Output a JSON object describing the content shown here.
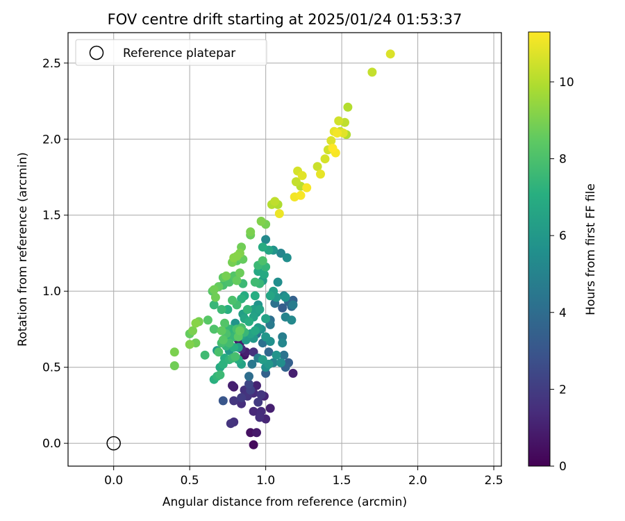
{
  "chart_data": {
    "type": "scatter",
    "title": "FOV centre drift starting at 2025/01/24 01:53:37",
    "xlabel": "Angular distance from reference (arcmin)",
    "ylabel": "Rotation from reference (arcmin)",
    "xlim": [
      -0.3,
      2.55
    ],
    "ylim": [
      -0.15,
      2.7
    ],
    "xticks": [
      0.0,
      0.5,
      1.0,
      1.5,
      2.0,
      2.5
    ],
    "xtick_labels": [
      "0.0",
      "0.5",
      "1.0",
      "1.5",
      "2.0",
      "2.5"
    ],
    "yticks": [
      0.0,
      0.5,
      1.0,
      1.5,
      2.0,
      2.5
    ],
    "ytick_labels": [
      "0.0",
      "0.5",
      "1.0",
      "1.5",
      "2.0",
      "2.5"
    ],
    "grid": true,
    "legend": {
      "position": "upper-left",
      "label": "Reference platepar"
    },
    "reference_point": {
      "x": 0.0,
      "y": 0.0
    },
    "colorbar": {
      "label": "Hours from first FF file",
      "colormap": "viridis",
      "range": [
        0,
        11.3
      ],
      "ticks": [
        0,
        2,
        4,
        6,
        8,
        10
      ],
      "tick_labels": [
        "0",
        "2",
        "4",
        "6",
        "8",
        "10"
      ]
    },
    "points": [
      [
        0.92,
        -0.01,
        0.3
      ],
      [
        0.9,
        0.07,
        0.5
      ],
      [
        0.94,
        0.07,
        0.8
      ],
      [
        0.79,
        0.14,
        1.6
      ],
      [
        0.77,
        0.13,
        1.7
      ],
      [
        0.96,
        0.17,
        1.5
      ],
      [
        1.0,
        0.16,
        1.2
      ],
      [
        0.92,
        0.21,
        1.3
      ],
      [
        0.97,
        0.21,
        1.4
      ],
      [
        1.03,
        0.23,
        1.0
      ],
      [
        0.79,
        0.28,
        1.8
      ],
      [
        0.84,
        0.26,
        1.5
      ],
      [
        0.88,
        0.31,
        1.7
      ],
      [
        0.95,
        0.27,
        1.9
      ],
      [
        0.99,
        0.31,
        1.2
      ],
      [
        0.84,
        0.3,
        2.0
      ],
      [
        0.92,
        0.33,
        1.4
      ],
      [
        0.94,
        0.38,
        1.1
      ],
      [
        0.78,
        0.38,
        1.0
      ],
      [
        0.79,
        0.37,
        0.9
      ],
      [
        0.86,
        0.35,
        1.6
      ],
      [
        0.97,
        0.32,
        1.8
      ],
      [
        0.9,
        0.35,
        2.2
      ],
      [
        0.72,
        0.28,
        3.0
      ],
      [
        0.89,
        0.39,
        2.4
      ],
      [
        0.89,
        0.44,
        4.0
      ],
      [
        0.91,
        0.52,
        4.5
      ],
      [
        1.0,
        0.46,
        3.5
      ],
      [
        1.18,
        0.46,
        1.0
      ],
      [
        1.13,
        0.5,
        3.6
      ],
      [
        1.05,
        0.53,
        5.0
      ],
      [
        1.1,
        0.53,
        5.5
      ],
      [
        1.0,
        0.5,
        5.6
      ],
      [
        0.98,
        0.55,
        6.2
      ],
      [
        1.02,
        0.52,
        6.0
      ],
      [
        0.95,
        0.56,
        4.8
      ],
      [
        0.86,
        0.58,
        0.6
      ],
      [
        0.87,
        0.6,
        1.0
      ],
      [
        0.84,
        0.62,
        1.4
      ],
      [
        0.83,
        0.66,
        0.9
      ],
      [
        0.82,
        0.68,
        0.5
      ],
      [
        0.92,
        0.6,
        1.6
      ],
      [
        1.02,
        0.6,
        3.8
      ],
      [
        1.07,
        0.58,
        5.8
      ],
      [
        1.12,
        0.58,
        4.3
      ],
      [
        1.15,
        0.53,
        3.4
      ],
      [
        1.11,
        0.66,
        5.2
      ],
      [
        1.11,
        0.7,
        4.8
      ],
      [
        1.03,
        0.67,
        5.6
      ],
      [
        0.98,
        0.66,
        4.2
      ],
      [
        1.0,
        0.7,
        5.9
      ],
      [
        0.94,
        0.72,
        4.4
      ],
      [
        0.97,
        0.75,
        5.7
      ],
      [
        1.03,
        0.78,
        4.6
      ],
      [
        1.03,
        0.81,
        4.1
      ],
      [
        1.0,
        0.82,
        6.5
      ],
      [
        1.13,
        0.83,
        5.0
      ],
      [
        1.17,
        0.81,
        5.3
      ],
      [
        1.11,
        0.89,
        3.3
      ],
      [
        1.06,
        0.92,
        4.2
      ],
      [
        1.15,
        0.93,
        3.7
      ],
      [
        1.17,
        0.9,
        3.9
      ],
      [
        1.13,
        0.96,
        5.7
      ],
      [
        1.07,
        0.96,
        6.0
      ],
      [
        1.03,
        0.97,
        6.6
      ],
      [
        1.05,
        1.0,
        6.3
      ],
      [
        1.12,
        0.97,
        5.1
      ],
      [
        1.18,
        0.94,
        3.5
      ],
      [
        1.18,
        0.91,
        4.7
      ],
      [
        1.08,
        1.06,
        5.5
      ],
      [
        0.99,
        1.11,
        6.8
      ],
      [
        1.0,
        1.16,
        7.4
      ],
      [
        0.98,
        1.2,
        8.0
      ],
      [
        1.02,
        1.27,
        6.6
      ],
      [
        1.05,
        1.27,
        5.8
      ],
      [
        0.98,
        1.29,
        6.9
      ],
      [
        1.0,
        1.34,
        5.3
      ],
      [
        1.1,
        1.25,
        5.1
      ],
      [
        1.14,
        1.22,
        5.5
      ],
      [
        0.95,
        1.17,
        7.6
      ],
      [
        0.95,
        1.13,
        6.7
      ],
      [
        0.96,
        1.05,
        7.5
      ],
      [
        0.98,
        1.07,
        6.3
      ],
      [
        0.93,
        1.06,
        7.7
      ],
      [
        0.85,
        1.05,
        7.6
      ],
      [
        0.93,
        0.97,
        7.0
      ],
      [
        0.86,
        0.97,
        6.9
      ],
      [
        0.84,
        0.95,
        7.2
      ],
      [
        0.81,
        0.91,
        7.8
      ],
      [
        0.78,
        0.94,
        8.0
      ],
      [
        0.75,
        0.88,
        7.1
      ],
      [
        0.71,
        0.88,
        7.6
      ],
      [
        0.66,
        0.91,
        7.5
      ],
      [
        0.67,
        0.96,
        8.8
      ],
      [
        0.65,
        1.0,
        8.3
      ],
      [
        0.66,
        1.01,
        8.8
      ],
      [
        0.69,
        1.03,
        8.6
      ],
      [
        0.72,
        1.09,
        8.5
      ],
      [
        0.74,
        1.1,
        8.9
      ],
      [
        0.79,
        1.1,
        8.2
      ],
      [
        0.81,
        1.07,
        8.6
      ],
      [
        0.76,
        1.06,
        8.0
      ],
      [
        0.72,
        1.04,
        7.9
      ],
      [
        0.78,
        1.19,
        8.9
      ],
      [
        0.81,
        1.23,
        9.2
      ],
      [
        0.83,
        1.25,
        9.1
      ],
      [
        0.84,
        1.29,
        8.8
      ],
      [
        0.81,
        1.2,
        8.4
      ],
      [
        0.83,
        1.12,
        8.7
      ],
      [
        0.85,
        1.21,
        8.6
      ],
      [
        0.79,
        1.22,
        9.2
      ],
      [
        0.9,
        1.39,
        9.0
      ],
      [
        0.9,
        1.37,
        8.7
      ],
      [
        0.97,
        1.46,
        9.1
      ],
      [
        1.0,
        1.44,
        8.9
      ],
      [
        1.04,
        1.57,
        10.0
      ],
      [
        1.06,
        1.59,
        10.2
      ],
      [
        1.08,
        1.57,
        9.9
      ],
      [
        1.09,
        1.51,
        11.0
      ],
      [
        1.19,
        1.62,
        11.1
      ],
      [
        1.23,
        1.63,
        11.2
      ],
      [
        1.2,
        1.72,
        10.3
      ],
      [
        1.21,
        1.79,
        10.6
      ],
      [
        1.24,
        1.76,
        10.8
      ],
      [
        1.23,
        1.69,
        10.1
      ],
      [
        1.27,
        1.68,
        11.2
      ],
      [
        1.34,
        1.82,
        10.4
      ],
      [
        1.36,
        1.77,
        10.9
      ],
      [
        1.39,
        1.87,
        10.6
      ],
      [
        1.41,
        1.93,
        10.5
      ],
      [
        1.44,
        1.94,
        11.3
      ],
      [
        1.46,
        1.91,
        11.2
      ],
      [
        1.43,
        1.99,
        10.7
      ],
      [
        1.45,
        2.05,
        10.9
      ],
      [
        1.47,
        2.04,
        11.1
      ],
      [
        1.49,
        2.05,
        10.4
      ],
      [
        1.48,
        2.12,
        10.5
      ],
      [
        1.52,
        2.11,
        10.2
      ],
      [
        1.51,
        2.04,
        10.8
      ],
      [
        1.53,
        2.03,
        10.0
      ],
      [
        1.54,
        2.21,
        10.0
      ],
      [
        1.7,
        2.44,
        10.3
      ],
      [
        1.82,
        2.56,
        10.7
      ],
      [
        0.5,
        0.72,
        8.6
      ],
      [
        0.52,
        0.74,
        9.0
      ],
      [
        0.54,
        0.79,
        9.2
      ],
      [
        0.56,
        0.8,
        8.9
      ],
      [
        0.5,
        0.65,
        9.1
      ],
      [
        0.54,
        0.66,
        8.8
      ],
      [
        0.4,
        0.6,
        9.0
      ],
      [
        0.4,
        0.51,
        8.8
      ],
      [
        0.6,
        0.58,
        7.7
      ],
      [
        0.62,
        0.81,
        8.3
      ],
      [
        0.66,
        0.75,
        8.1
      ],
      [
        0.68,
        0.61,
        6.1
      ],
      [
        0.66,
        0.42,
        7.1
      ],
      [
        0.68,
        0.44,
        7.4
      ],
      [
        0.7,
        0.45,
        7.6
      ],
      [
        0.72,
        0.52,
        7.2
      ],
      [
        0.73,
        0.56,
        7.0
      ],
      [
        0.7,
        0.5,
        6.8
      ],
      [
        0.76,
        0.55,
        7.3
      ],
      [
        0.78,
        0.56,
        7.6
      ],
      [
        0.8,
        0.57,
        7.9
      ],
      [
        0.82,
        0.55,
        6.9
      ],
      [
        0.84,
        0.52,
        6.5
      ],
      [
        0.69,
        0.6,
        8.0
      ],
      [
        0.71,
        0.66,
        7.8
      ],
      [
        0.72,
        0.68,
        8.3
      ],
      [
        0.74,
        0.64,
        7.4
      ],
      [
        0.76,
        0.66,
        7.8
      ],
      [
        0.74,
        0.72,
        8.0
      ],
      [
        0.71,
        0.74,
        8.5
      ],
      [
        0.74,
        0.76,
        7.5
      ],
      [
        0.73,
        0.79,
        8.2
      ],
      [
        0.77,
        0.75,
        7.3
      ],
      [
        0.79,
        0.73,
        6.8
      ],
      [
        0.79,
        0.7,
        7.5
      ],
      [
        0.81,
        0.75,
        7.9
      ],
      [
        0.82,
        0.7,
        8.4
      ],
      [
        0.83,
        0.74,
        8.6
      ],
      [
        0.84,
        0.76,
        7.9
      ],
      [
        0.86,
        0.73,
        7.5
      ],
      [
        0.87,
        0.68,
        6.2
      ],
      [
        0.84,
        0.71,
        6.7
      ],
      [
        0.9,
        0.72,
        6.5
      ],
      [
        0.92,
        0.69,
        6.0
      ],
      [
        0.93,
        0.74,
        6.7
      ],
      [
        0.95,
        0.76,
        6.1
      ],
      [
        0.89,
        0.8,
        7.0
      ],
      [
        0.86,
        0.82,
        6.6
      ],
      [
        0.85,
        0.85,
        6.3
      ],
      [
        0.88,
        0.88,
        7.4
      ],
      [
        0.92,
        0.83,
        6.5
      ],
      [
        0.94,
        0.86,
        6.1
      ],
      [
        0.92,
        0.88,
        6.3
      ],
      [
        0.95,
        0.91,
        5.8
      ],
      [
        0.96,
        0.88,
        6.5
      ],
      [
        0.8,
        0.79,
        5.8
      ],
      [
        0.82,
        0.63,
        6.4
      ],
      [
        0.76,
        0.61,
        6.0
      ],
      [
        0.79,
        0.63,
        7.1
      ],
      [
        0.75,
        0.7,
        7.0
      ]
    ]
  }
}
